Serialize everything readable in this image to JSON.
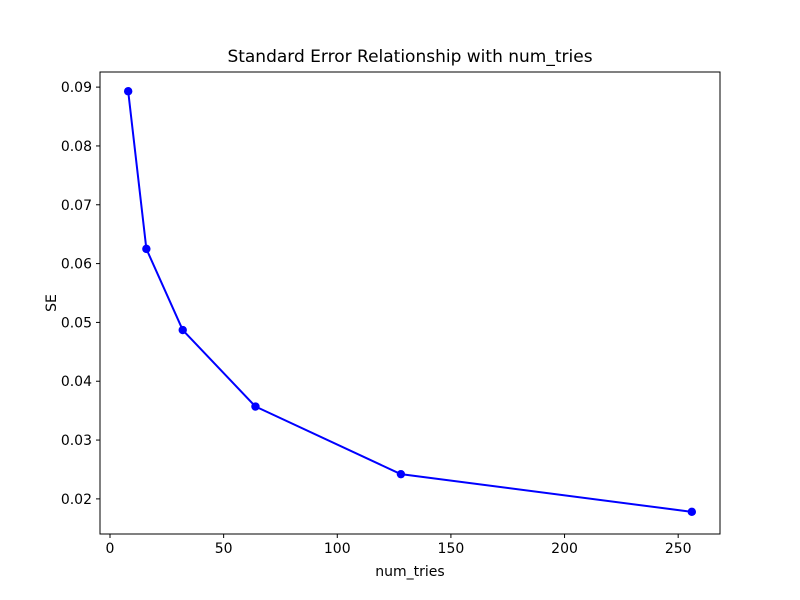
{
  "figure": {
    "background": "#ffffff",
    "plot_background": "#ffffff",
    "axis_color": "#000000",
    "text_color": "#000000"
  },
  "chart_data": {
    "type": "line",
    "title": "Standard Error Relationship with num_tries",
    "xlabel": "num_tries",
    "ylabel": "SE",
    "x": [
      8,
      16,
      32,
      64,
      128,
      256
    ],
    "y": [
      0.0893,
      0.0625,
      0.0487,
      0.0357,
      0.0242,
      0.0178
    ],
    "line_color": "#0000ff",
    "marker": "circle",
    "marker_color": "#0000ff",
    "marker_radius": 4.2,
    "line_width": 2,
    "xlim": [
      -4.4,
      268.4
    ],
    "ylim": [
      0.01403,
      0.09257
    ],
    "xticks": {
      "values": [
        0,
        50,
        100,
        150,
        200,
        250
      ],
      "labels": [
        "0",
        "50",
        "100",
        "150",
        "200",
        "250"
      ]
    },
    "yticks": {
      "values": [
        0.02,
        0.03,
        0.04,
        0.05,
        0.06,
        0.07,
        0.08,
        0.09
      ],
      "labels": [
        "0.02",
        "0.03",
        "0.04",
        "0.05",
        "0.06",
        "0.07",
        "0.08",
        "0.09"
      ]
    },
    "grid": false,
    "legend_visible": false
  }
}
